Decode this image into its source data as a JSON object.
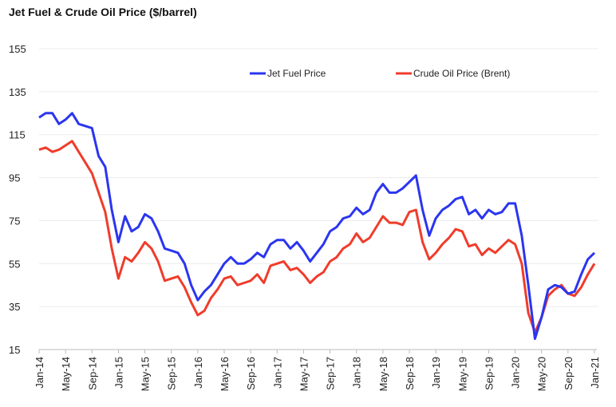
{
  "chart_data": {
    "type": "line",
    "title": "Jet Fuel & Crude Oil Price ($/barrel)",
    "xlabel": "",
    "ylabel": "",
    "ylim": [
      15,
      155
    ],
    "yticks": [
      15,
      35,
      55,
      75,
      95,
      115,
      135,
      155
    ],
    "xticks": [
      "Jan-14",
      "May-14",
      "Sep-14",
      "Jan-15",
      "May-15",
      "Sep-15",
      "Jan-16",
      "May-16",
      "Sep-16",
      "Jan-17",
      "May-17",
      "Sep-17",
      "Jan-18",
      "May-18",
      "Sep-18",
      "Jan-19",
      "May-19",
      "Sep-19",
      "Jan-20",
      "May-20",
      "Sep-20",
      "Jan-21"
    ],
    "x_start": "Jan-14",
    "x_end": "Jan-21",
    "x_frequency": "monthly",
    "grid": "horizontal",
    "legend": "top-right",
    "series": [
      {
        "name": "Jet Fuel Price",
        "color": "#2b35f0",
        "values": [
          123,
          125,
          125,
          120,
          122,
          125,
          120,
          119,
          118,
          105,
          100,
          80,
          65,
          77,
          70,
          72,
          78,
          76,
          70,
          62,
          61,
          60,
          55,
          45,
          38,
          42,
          45,
          50,
          55,
          58,
          55,
          55,
          57,
          60,
          58,
          64,
          66,
          66,
          62,
          65,
          61,
          56,
          60,
          64,
          70,
          72,
          76,
          77,
          81,
          78,
          80,
          88,
          92,
          88,
          88,
          90,
          93,
          96,
          80,
          68,
          76,
          80,
          82,
          85,
          86,
          78,
          80,
          76,
          80,
          78,
          79,
          83,
          83,
          68,
          45,
          20,
          30,
          43,
          45,
          44,
          41,
          42,
          50,
          57,
          60
        ]
      },
      {
        "name": "Crude Oil Price (Brent)",
        "color": "#f03c2b",
        "values": [
          108,
          109,
          107,
          108,
          110,
          112,
          107,
          102,
          97,
          88,
          79,
          62,
          48,
          58,
          56,
          60,
          65,
          62,
          56,
          47,
          48,
          49,
          44,
          37,
          31,
          33,
          39,
          43,
          48,
          49,
          45,
          46,
          47,
          50,
          46,
          54,
          55,
          56,
          52,
          53,
          50,
          46,
          49,
          51,
          56,
          58,
          62,
          64,
          69,
          65,
          67,
          72,
          77,
          74,
          74,
          73,
          79,
          80,
          65,
          57,
          60,
          64,
          67,
          71,
          70,
          63,
          64,
          59,
          62,
          60,
          63,
          66,
          64,
          55,
          32,
          23,
          30,
          40,
          43,
          45,
          41,
          40,
          44,
          50,
          55
        ]
      }
    ]
  }
}
